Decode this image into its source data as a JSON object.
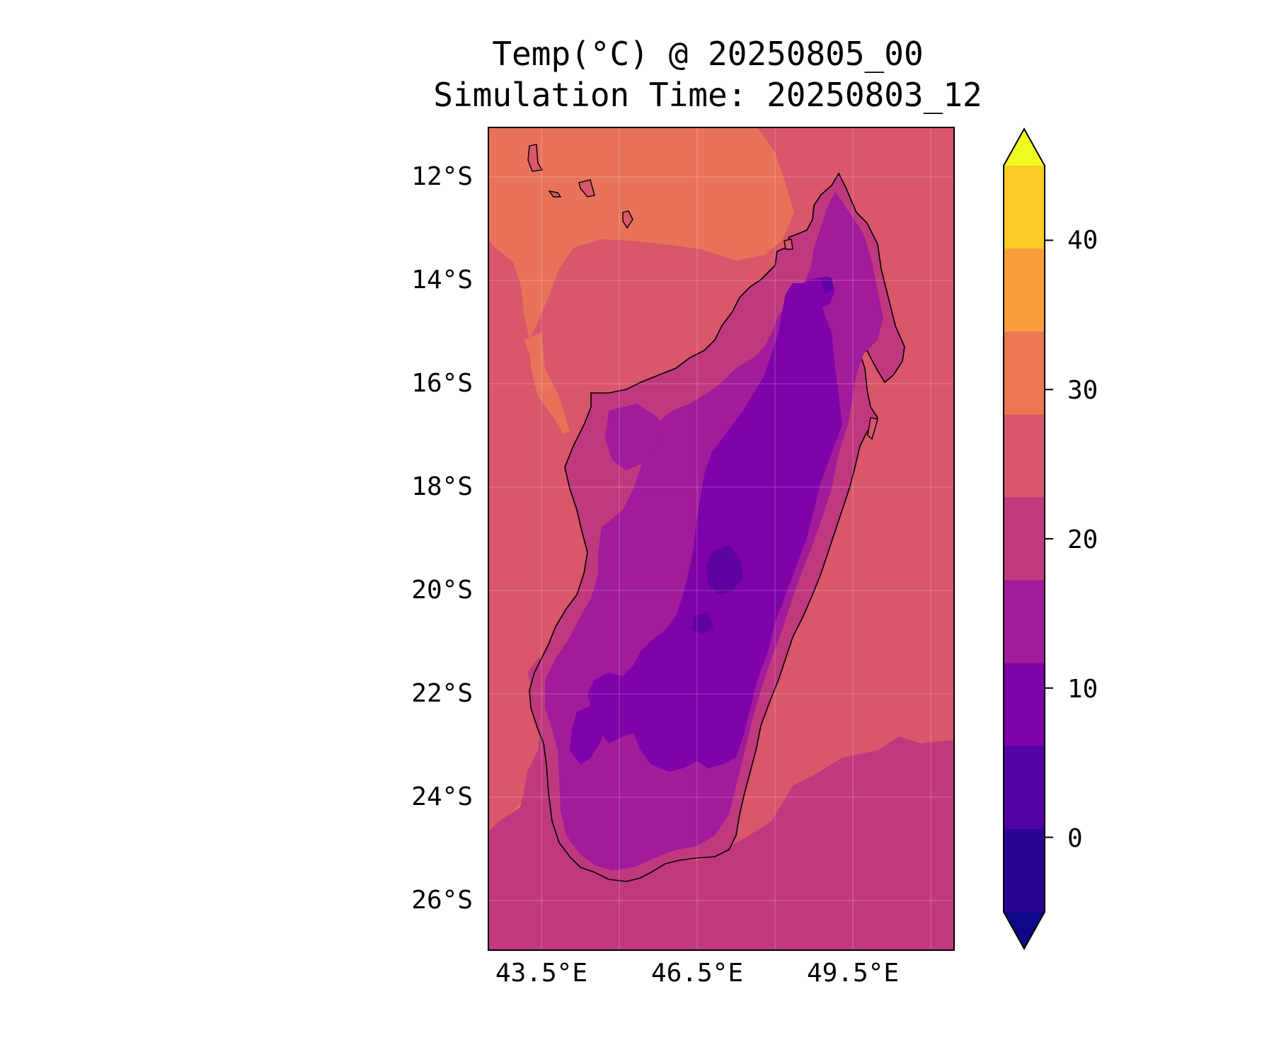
{
  "title": {
    "line1": "Temp(°C) @ 20250805_00",
    "line2": "Simulation Time: 20250803_12"
  },
  "map": {
    "region": "Madagascar",
    "lat_ticks": [
      "12°S",
      "14°S",
      "16°S",
      "18°S",
      "20°S",
      "22°S",
      "24°S",
      "26°S"
    ],
    "lon_ticks": [
      "43.5°E",
      "46.5°E",
      "49.5°E"
    ],
    "gridlines": true
  },
  "colorbar": {
    "ticks": [
      "40",
      "30",
      "20",
      "10",
      "0"
    ],
    "extend": "both",
    "levels": [
      -5,
      0,
      5,
      10,
      15,
      20,
      25,
      30,
      35,
      40,
      45
    ],
    "colors": [
      "#0d0887",
      "#2a0593",
      "#5302a3",
      "#7e03a8",
      "#a11b9b",
      "#c0397f",
      "#d8576b",
      "#ec7853",
      "#fa9e3b",
      "#fdca26",
      "#f0f921"
    ]
  },
  "fills": {
    "sea_warm": "#e8735a",
    "sea_mid": "#d9566b",
    "sea_cool": "#c0397f",
    "land_mid": "#a11b9b",
    "land_cool": "#7e03a8",
    "land_cold": "#5e02a1"
  }
}
